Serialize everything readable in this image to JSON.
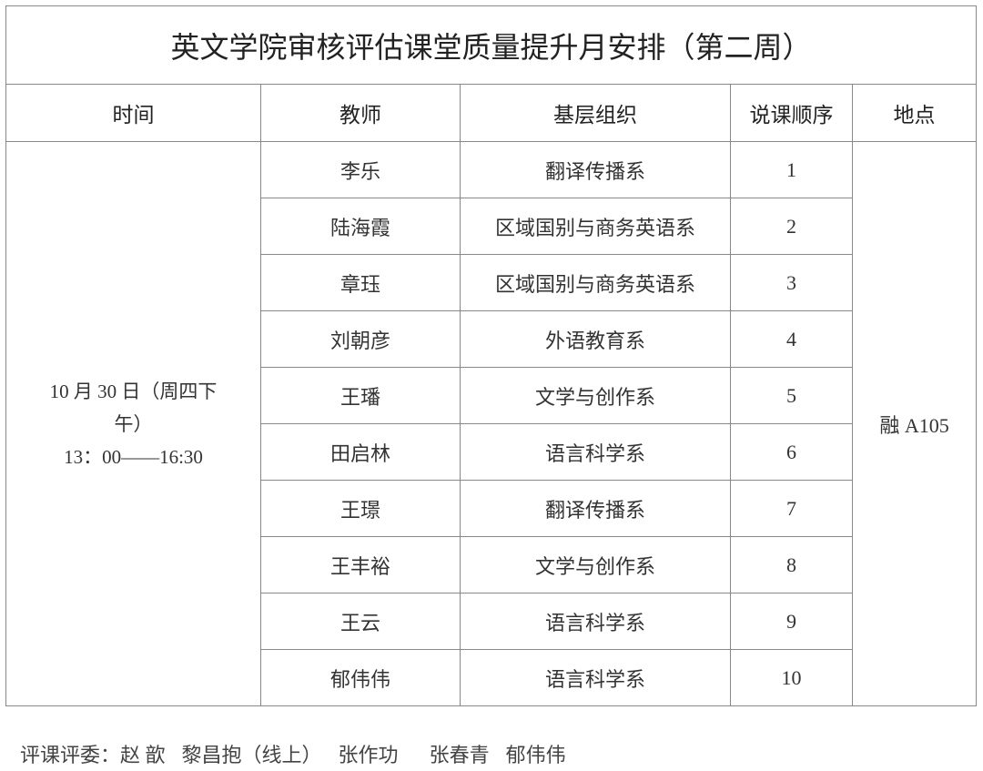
{
  "title": "英文学院审核评估课堂质量提升月安排（第二周）",
  "headers": [
    "时间",
    "教师",
    "基层组织",
    "说课顺序",
    "地点"
  ],
  "time": {
    "line1": "10 月 30 日（周四下",
    "line2": "午）",
    "line3": "13：00——16:30"
  },
  "location": "融 A105",
  "rows": [
    {
      "teacher": "李乐",
      "org": "翻译传播系",
      "order": "1"
    },
    {
      "teacher": "陆海霞",
      "org": "区域国别与商务英语系",
      "order": "2"
    },
    {
      "teacher": "章珏",
      "org": "区域国别与商务英语系",
      "order": "3"
    },
    {
      "teacher": "刘朝彦",
      "org": "外语教育系",
      "order": "4"
    },
    {
      "teacher": "王璠",
      "org": "文学与创作系",
      "order": "5"
    },
    {
      "teacher": "田启林",
      "org": "语言科学系",
      "order": "6"
    },
    {
      "teacher": "王璟",
      "org": "翻译传播系",
      "order": "7"
    },
    {
      "teacher": "王丰裕",
      "org": "文学与创作系",
      "order": "8"
    },
    {
      "teacher": "王云",
      "org": "语言科学系",
      "order": "9"
    },
    {
      "teacher": "郁伟伟",
      "org": "语言科学系",
      "order": "10"
    }
  ],
  "footer": {
    "label": "评课评委：",
    "judges": [
      "赵 歆",
      "黎昌抱（线上）",
      "张作功",
      "张春青",
      "郁伟伟"
    ]
  }
}
